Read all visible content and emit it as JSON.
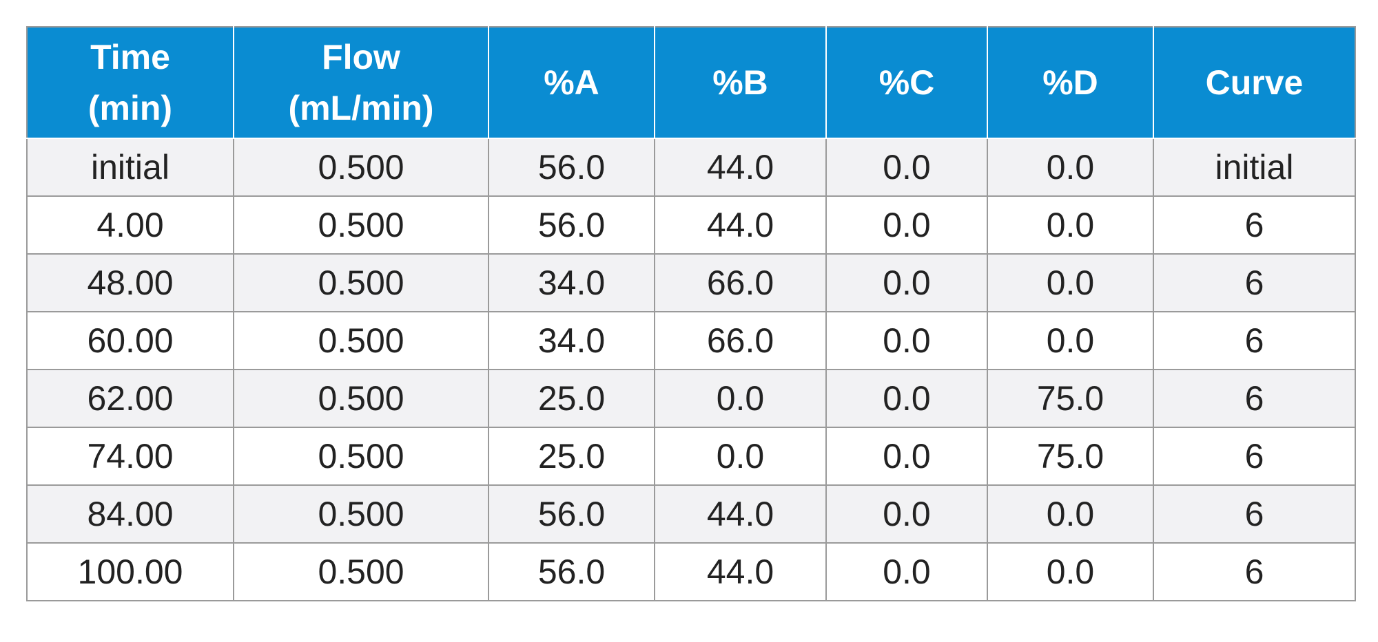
{
  "table": {
    "headers": [
      [
        "Time",
        "(min)"
      ],
      [
        "Flow",
        "(mL/min)"
      ],
      [
        "%A"
      ],
      [
        "%B"
      ],
      [
        "%C"
      ],
      [
        "%D"
      ],
      [
        "Curve"
      ]
    ],
    "rows": [
      [
        "initial",
        "0.500",
        "56.0",
        "44.0",
        "0.0",
        "0.0",
        "initial"
      ],
      [
        "4.00",
        "0.500",
        "56.0",
        "44.0",
        "0.0",
        "0.0",
        "6"
      ],
      [
        "48.00",
        "0.500",
        "34.0",
        "66.0",
        "0.0",
        "0.0",
        "6"
      ],
      [
        "60.00",
        "0.500",
        "34.0",
        "66.0",
        "0.0",
        "0.0",
        "6"
      ],
      [
        "62.00",
        "0.500",
        "25.0",
        "0.0",
        "0.0",
        "75.0",
        "6"
      ],
      [
        "74.00",
        "0.500",
        "25.0",
        "0.0",
        "0.0",
        "75.0",
        "6"
      ],
      [
        "84.00",
        "0.500",
        "56.0",
        "44.0",
        "0.0",
        "0.0",
        "6"
      ],
      [
        "100.00",
        "0.500",
        "56.0",
        "44.0",
        "0.0",
        "0.0",
        "6"
      ]
    ]
  },
  "colors": {
    "header_background": "#0a8cd2",
    "header_text": "#ffffff",
    "row_shaded": "#f2f2f4",
    "row_plain": "#ffffff",
    "grid_lines": "#9a9a9a",
    "cell_text": "#222222"
  }
}
